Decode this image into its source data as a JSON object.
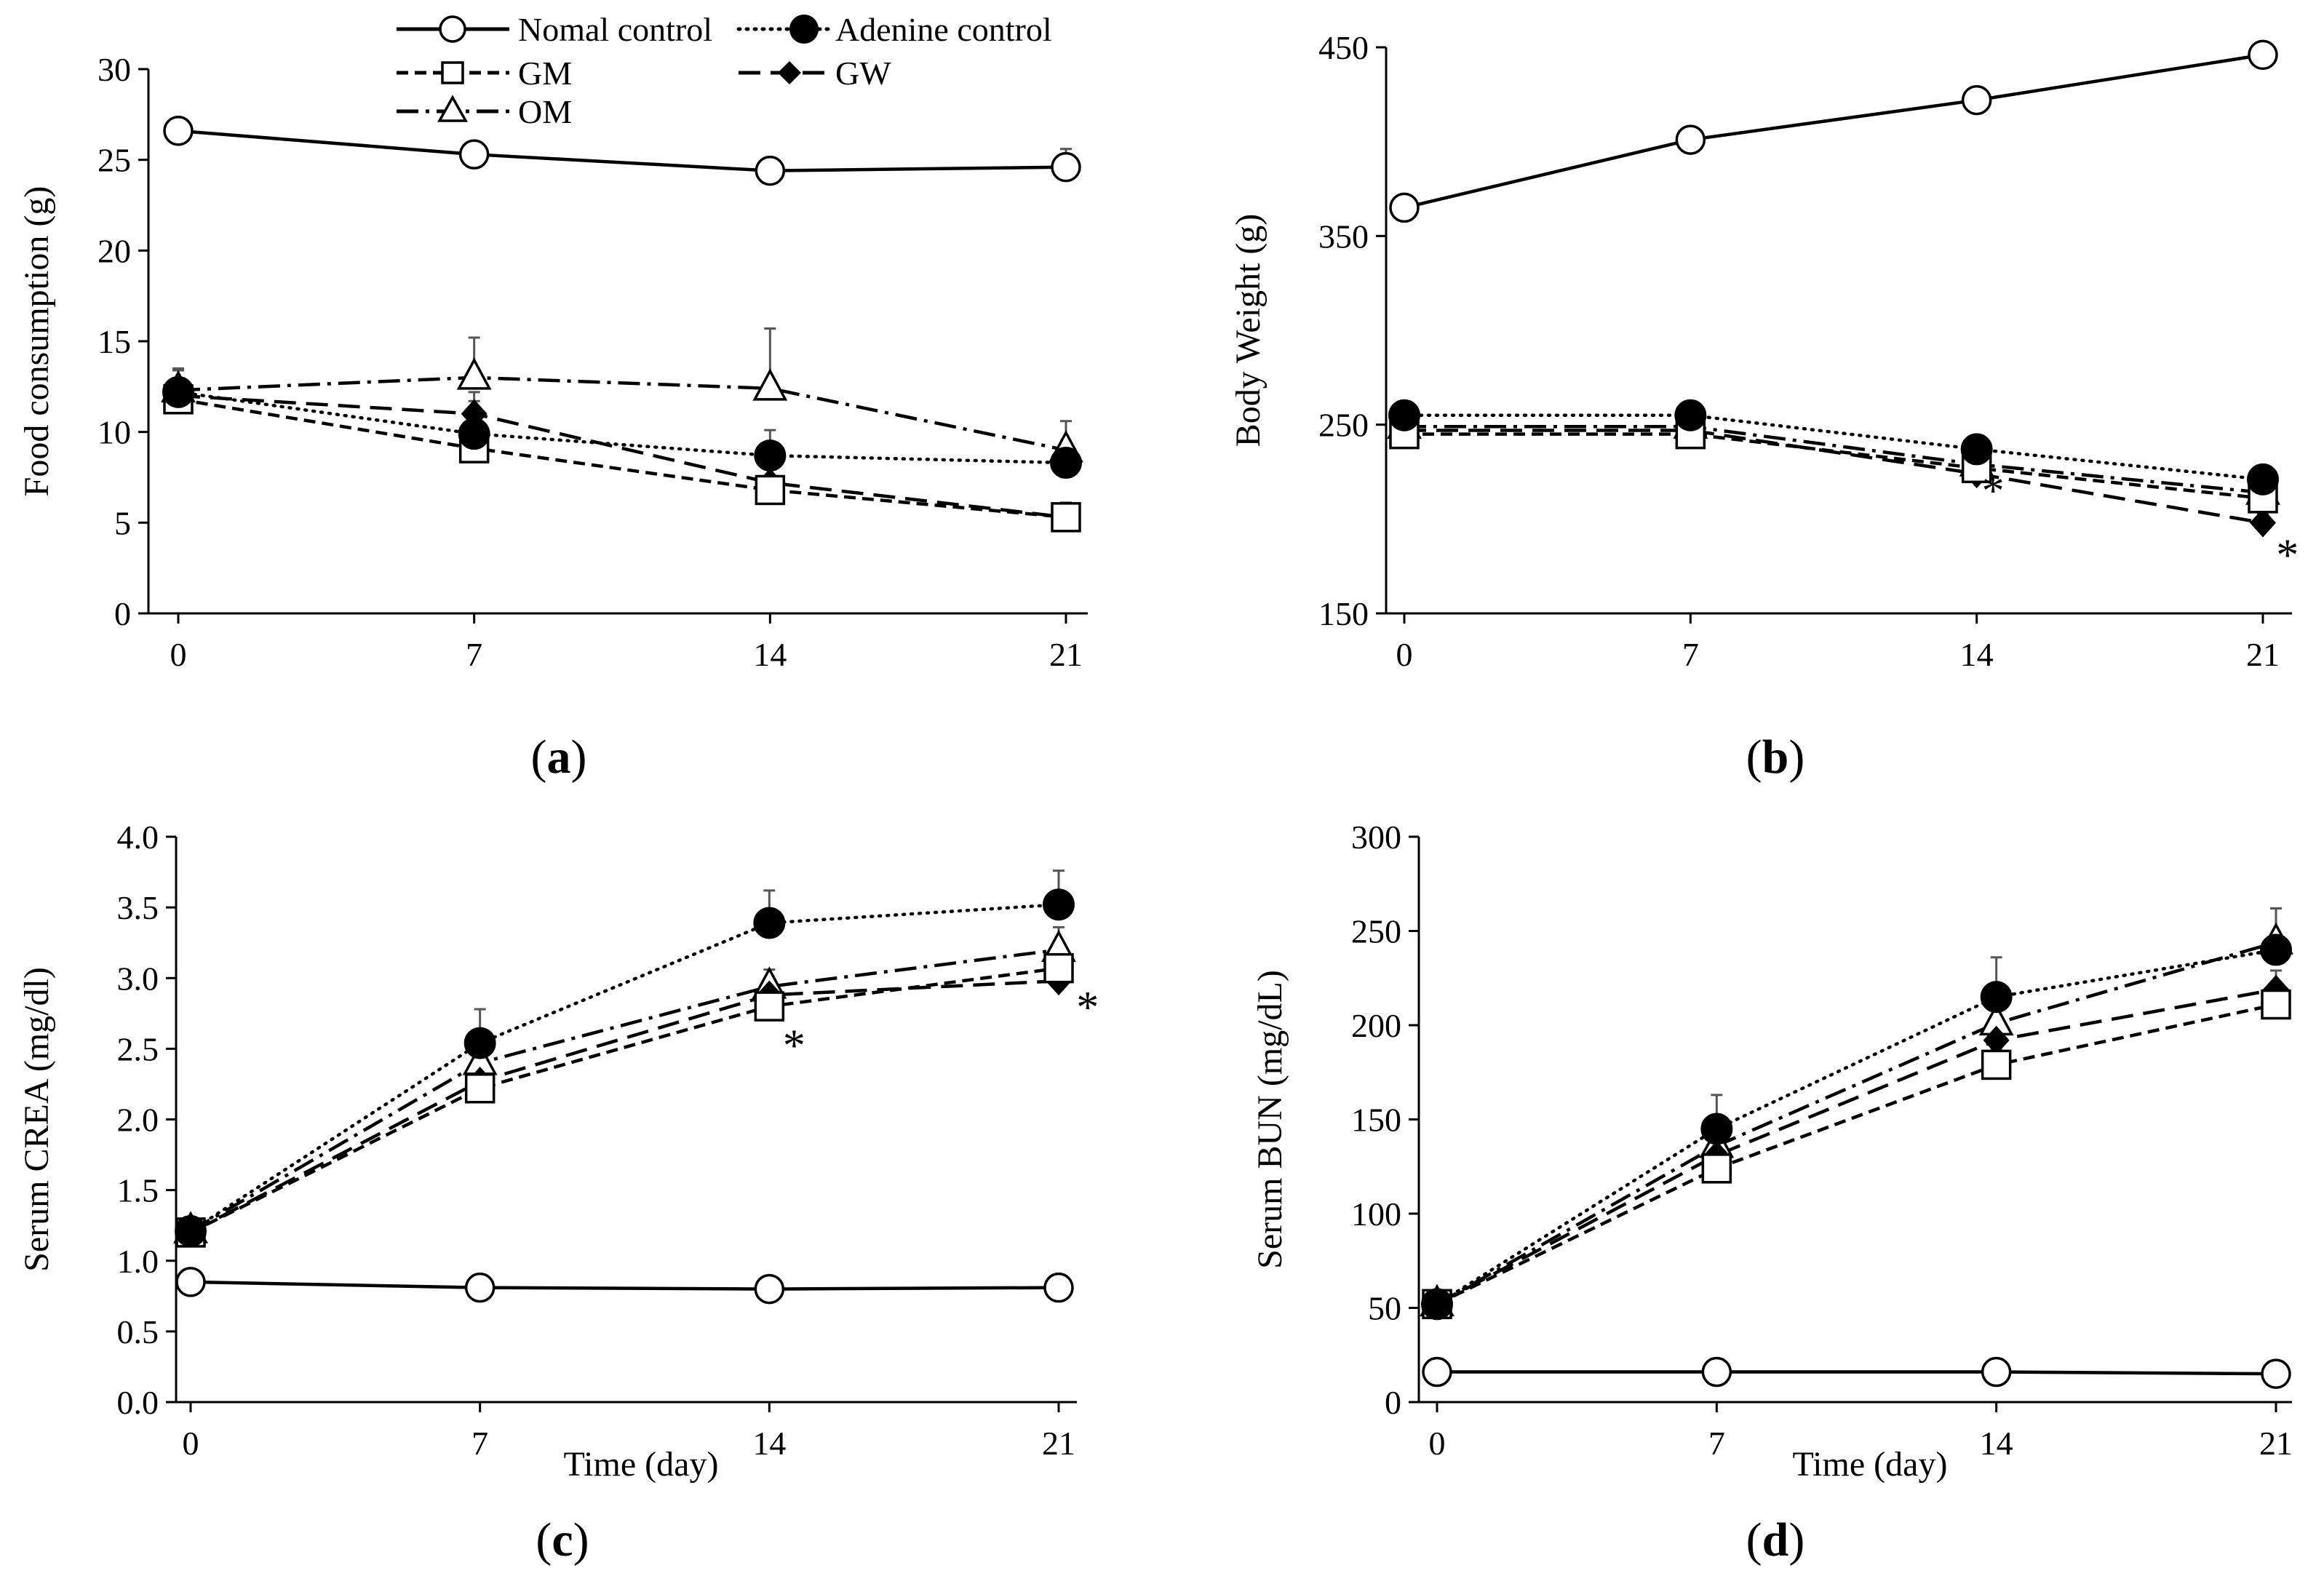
{
  "legend": {
    "normal_control": "Nomal control",
    "adenine_control": "Adenine control",
    "gm": "GM",
    "gw": "GW",
    "om": "OM"
  },
  "captions": {
    "a": "a",
    "b": "b",
    "c": "c",
    "d": "d"
  },
  "chart_data": [
    {
      "id": "a",
      "type": "line",
      "ylabel": "Food consumption  (g)",
      "xlabel": "",
      "xticks": [
        "0",
        "7",
        "14",
        "21"
      ],
      "yticks": [
        "0",
        "5",
        "10",
        "15",
        "20",
        "25",
        "30"
      ],
      "ylim": [
        0,
        30
      ],
      "x": [
        0,
        7,
        14,
        21
      ],
      "grid": false,
      "legend_position": "top",
      "series": [
        {
          "key": "normal_control",
          "name": "Nomal control",
          "values": [
            26.6,
            25.3,
            24.4,
            24.6
          ],
          "errors": [
            0.4,
            0.4,
            0.6,
            1.0
          ],
          "marker": "open-circle",
          "dash": "solid"
        },
        {
          "key": "adenine_control",
          "name": "Adenine control",
          "values": [
            12.2,
            9.9,
            8.7,
            8.3
          ],
          "errors": [
            1.2,
            1.8,
            1.4,
            1.2
          ],
          "marker": "filled-circle",
          "dash": "dotted"
        },
        {
          "key": "gm",
          "name": "GM",
          "values": [
            11.8,
            9.1,
            6.8,
            5.3
          ],
          "errors": [
            0.8,
            1.6,
            0.8,
            0.8
          ],
          "marker": "open-square",
          "dash": "short-dash"
        },
        {
          "key": "gw",
          "name": "GW",
          "values": [
            12.0,
            11.0,
            7.2,
            5.3
          ],
          "errors": [
            1.4,
            1.2,
            0.8,
            0.8
          ],
          "marker": "filled-diamond",
          "dash": "long-dash"
        },
        {
          "key": "om",
          "name": "OM",
          "values": [
            12.3,
            13.0,
            12.4,
            9.0
          ],
          "errors": [
            1.2,
            2.2,
            3.3,
            1.6
          ],
          "marker": "open-triangle",
          "dash": "dash-dot"
        }
      ],
      "annotations": []
    },
    {
      "id": "b",
      "type": "line",
      "ylabel": "Body  Weight  (g)",
      "xlabel": "",
      "xticks": [
        "0",
        "7",
        "14",
        "21"
      ],
      "yticks": [
        "150",
        "250",
        "350",
        "450"
      ],
      "ylim": [
        150,
        450
      ],
      "x": [
        0,
        7,
        14,
        21
      ],
      "grid": false,
      "series": [
        {
          "key": "normal_control",
          "name": "Nomal control",
          "values": [
            365,
            401,
            422,
            446
          ],
          "errors": [
            5,
            5,
            5,
            5
          ],
          "marker": "open-circle",
          "dash": "solid"
        },
        {
          "key": "adenine_control",
          "name": "Adenine control",
          "values": [
            255,
            255,
            237,
            221
          ],
          "errors": [
            4,
            5,
            4,
            5
          ],
          "marker": "filled-circle",
          "dash": "dotted"
        },
        {
          "key": "gm",
          "name": "GM",
          "values": [
            245,
            245,
            227,
            211
          ],
          "errors": [
            4,
            5,
            4,
            5
          ],
          "marker": "open-square",
          "dash": "short-dash"
        },
        {
          "key": "gw",
          "name": "GW",
          "values": [
            247,
            247,
            224,
            198
          ],
          "errors": [
            4,
            5,
            6,
            5
          ],
          "marker": "filled-diamond",
          "dash": "long-dash"
        },
        {
          "key": "om",
          "name": "OM",
          "values": [
            249,
            249,
            229,
            214
          ],
          "errors": [
            4,
            5,
            4,
            5
          ],
          "marker": "open-triangle",
          "dash": "dash-dot"
        }
      ],
      "annotations": [
        {
          "text": "*",
          "x": 14.4,
          "y": 217
        },
        {
          "text": "*",
          "x": 21.6,
          "y": 183
        }
      ]
    },
    {
      "id": "c",
      "type": "line",
      "ylabel": "Serum CREA (mg/dl)",
      "xlabel": "Time (day)",
      "xticks": [
        "0",
        "7",
        "14",
        "21"
      ],
      "yticks": [
        "0.0",
        "0.5",
        "1.0",
        "1.5",
        "2.0",
        "2.5",
        "3.0",
        "3.5",
        "4.0"
      ],
      "ylim": [
        0,
        4
      ],
      "x": [
        0,
        7,
        14,
        21
      ],
      "grid": false,
      "series": [
        {
          "key": "normal_control",
          "name": "Nomal control",
          "values": [
            0.85,
            0.81,
            0.8,
            0.81
          ],
          "errors": [
            0.02,
            0.02,
            0.02,
            0.02
          ],
          "marker": "open-circle",
          "dash": "solid"
        },
        {
          "key": "adenine_control",
          "name": "Adenine control",
          "values": [
            1.21,
            2.54,
            3.39,
            3.52
          ],
          "errors": [
            0.05,
            0.24,
            0.23,
            0.24
          ],
          "marker": "filled-circle",
          "dash": "dotted"
        },
        {
          "key": "gm",
          "name": "GM",
          "values": [
            1.2,
            2.22,
            2.8,
            3.07
          ],
          "errors": [
            0.05,
            0.1,
            0.1,
            0.12
          ],
          "marker": "open-square",
          "dash": "short-dash"
        },
        {
          "key": "gw",
          "name": "GW",
          "values": [
            1.2,
            2.27,
            2.88,
            2.98
          ],
          "errors": [
            0.05,
            0.12,
            0.1,
            0.12
          ],
          "marker": "filled-diamond",
          "dash": "long-dash"
        },
        {
          "key": "om",
          "name": "OM",
          "values": [
            1.21,
            2.4,
            2.94,
            3.2
          ],
          "errors": [
            0.05,
            0.2,
            0.12,
            0.16
          ],
          "marker": "open-triangle",
          "dash": "dash-dot"
        }
      ],
      "annotations": [
        {
          "text": "*",
          "x": 14.6,
          "y": 2.55
        },
        {
          "text": "*",
          "x": 21.7,
          "y": 2.82
        }
      ]
    },
    {
      "id": "d",
      "type": "line",
      "ylabel": "Serum BUN (mg/dL)",
      "xlabel": "Time (day)",
      "xticks": [
        "0",
        "7",
        "14",
        "21"
      ],
      "yticks": [
        "0",
        "50",
        "100",
        "150",
        "200",
        "250",
        "300"
      ],
      "ylim": [
        0,
        300
      ],
      "x": [
        0,
        7,
        14,
        21
      ],
      "grid": false,
      "series": [
        {
          "key": "normal_control",
          "name": "Nomal control",
          "values": [
            16,
            16,
            16,
            15
          ],
          "errors": [
            1,
            1,
            1,
            1
          ],
          "marker": "open-circle",
          "dash": "solid"
        },
        {
          "key": "adenine_control",
          "name": "Adenine control",
          "values": [
            52,
            145,
            215,
            240
          ],
          "errors": [
            3,
            18,
            21,
            22
          ],
          "marker": "filled-circle",
          "dash": "dotted"
        },
        {
          "key": "gm",
          "name": "GM",
          "values": [
            52,
            124,
            179,
            211
          ],
          "errors": [
            3,
            9,
            8,
            9
          ],
          "marker": "open-square",
          "dash": "short-dash"
        },
        {
          "key": "gw",
          "name": "GW",
          "values": [
            52,
            131,
            192,
            219
          ],
          "errors": [
            3,
            9,
            10,
            10
          ],
          "marker": "filled-diamond",
          "dash": "long-dash"
        },
        {
          "key": "om",
          "name": "OM",
          "values": [
            52,
            136,
            201,
            244
          ],
          "errors": [
            3,
            10,
            12,
            18
          ],
          "marker": "open-triangle",
          "dash": "dash-dot"
        }
      ],
      "annotations": []
    }
  ]
}
